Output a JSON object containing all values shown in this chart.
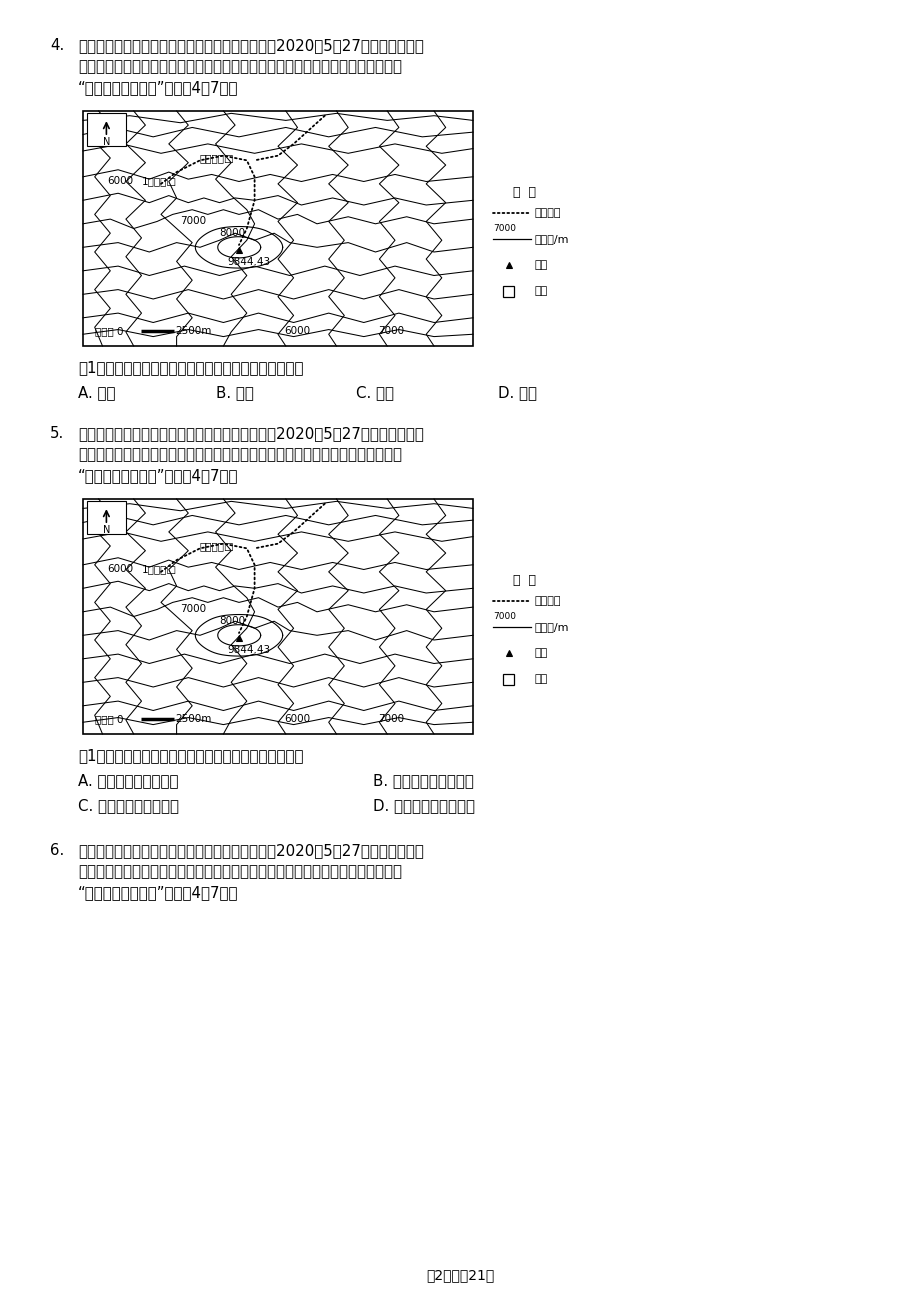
{
  "bg_color": "#ffffff",
  "q4_num": "4.",
  "q4_lines": [
    "世界第一高峰珠穆朗玛峰是喜马拉雅山脉的主峰。2020年5月27日中国珠峰高程",
    "测量登山队成功登顶，对珠峰的海拔进行重新测量，未来珠峰高度可能被改写。读",
    "“珠峰等高线地形图”，完刹4～7题。"
  ],
  "q4_question": "从1号营地到珠峰山顶，途经的地形部位主要是（　　）",
  "q4_opts": [
    "A. 鞍部",
    "B. 山谷",
    "C. 山脊",
    "D. 山顶"
  ],
  "q5_num": "5.",
  "q5_lines": [
    "世界第一高峰珠穆朗玛峰是喜马拉雅山脉的主峰。2020年5月27日中国珠峰高程",
    "测量登山队成功登顶，对珠峰的海拔进行重新测量，未来珠峰高度可能被改写。读",
    "“珠峰等高线地形图”，完刹4～7题。"
  ],
  "q5_question": "从1号营地出发到珠峰山顶，攀登的大致方向是（　　）",
  "q5_opts": [
    "A. 先向东北，再向西北",
    "B. 先向西南，再向东南",
    "C. 先向西北，再向东北",
    "D. 先向东南，再向西南"
  ],
  "q6_num": "6.",
  "q6_lines": [
    "世界第一高峰珠穆朗玛峰是喜马拉雅山脉的主峰。2020年5月27日中国珠峰高程",
    "测量登山队成功登顶，对珠峰的海拔进行重新测量，未来珠峰高度可能被改写。读",
    "“珠峰等高线地形图”，完刹4～7题。"
  ],
  "footer": "第2页，全21页",
  "legend_title": "图  例",
  "legend_dotline": "登顶路线",
  "legend_contour": "等高线/m",
  "legend_peak": "山峰",
  "legend_camp": "营地",
  "map_label_qianjin": "前进营地",
  "map_label_1hao": "1号营地",
  "map_sq_symbol": "□",
  "scalebar_label": "比例尺",
  "north_label": "N"
}
